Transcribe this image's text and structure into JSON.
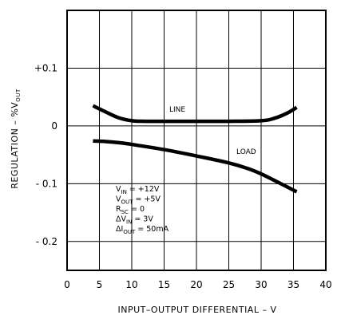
{
  "chart_data": {
    "type": "line",
    "xlabel": "INPUT–OUTPUT DIFFERENTIAL – V",
    "ylabel_main": "REGULATION – %V",
    "ylabel_sub": "OUT",
    "xlim": [
      0,
      40
    ],
    "ylim": [
      -0.25,
      0.2
    ],
    "grid": true,
    "xticks": [
      0,
      5,
      10,
      15,
      20,
      25,
      30,
      35,
      40
    ],
    "xtick_labels": [
      "0",
      "5",
      "10",
      "15",
      "20",
      "25",
      "30",
      "35",
      "40"
    ],
    "yticks": [
      0.1,
      0,
      -0.1,
      -0.2
    ],
    "ytick_labels": [
      "+0.1",
      "0",
      "- 0.1",
      "- 0.2"
    ],
    "series": [
      {
        "name": "LINE",
        "x": [
          4,
          6,
          8,
          10,
          12,
          15,
          20,
          25,
          30,
          32,
          34,
          35.5
        ],
        "y": [
          0.035,
          0.024,
          0.014,
          0.009,
          0.008,
          0.008,
          0.008,
          0.008,
          0.009,
          0.013,
          0.022,
          0.032
        ]
      },
      {
        "name": "LOAD",
        "x": [
          4,
          6,
          8,
          10,
          15,
          20,
          25,
          28,
          30,
          32,
          35.5
        ],
        "y": [
          -0.026,
          -0.027,
          -0.029,
          -0.032,
          -0.041,
          -0.052,
          -0.064,
          -0.074,
          -0.083,
          -0.094,
          -0.114
        ]
      }
    ],
    "conditions": [
      {
        "main": "V",
        "sub": "IN",
        "rest": " = +12V"
      },
      {
        "main": "V",
        "sub": "OUT",
        "rest": " = +5V"
      },
      {
        "main": "R",
        "sub": "SC",
        "rest": " = 0"
      },
      {
        "main": "ΔV",
        "sub": "IN",
        "rest": " = 3V"
      },
      {
        "main": "ΔI",
        "sub": "OUT",
        "rest": " = 50mA"
      }
    ]
  }
}
